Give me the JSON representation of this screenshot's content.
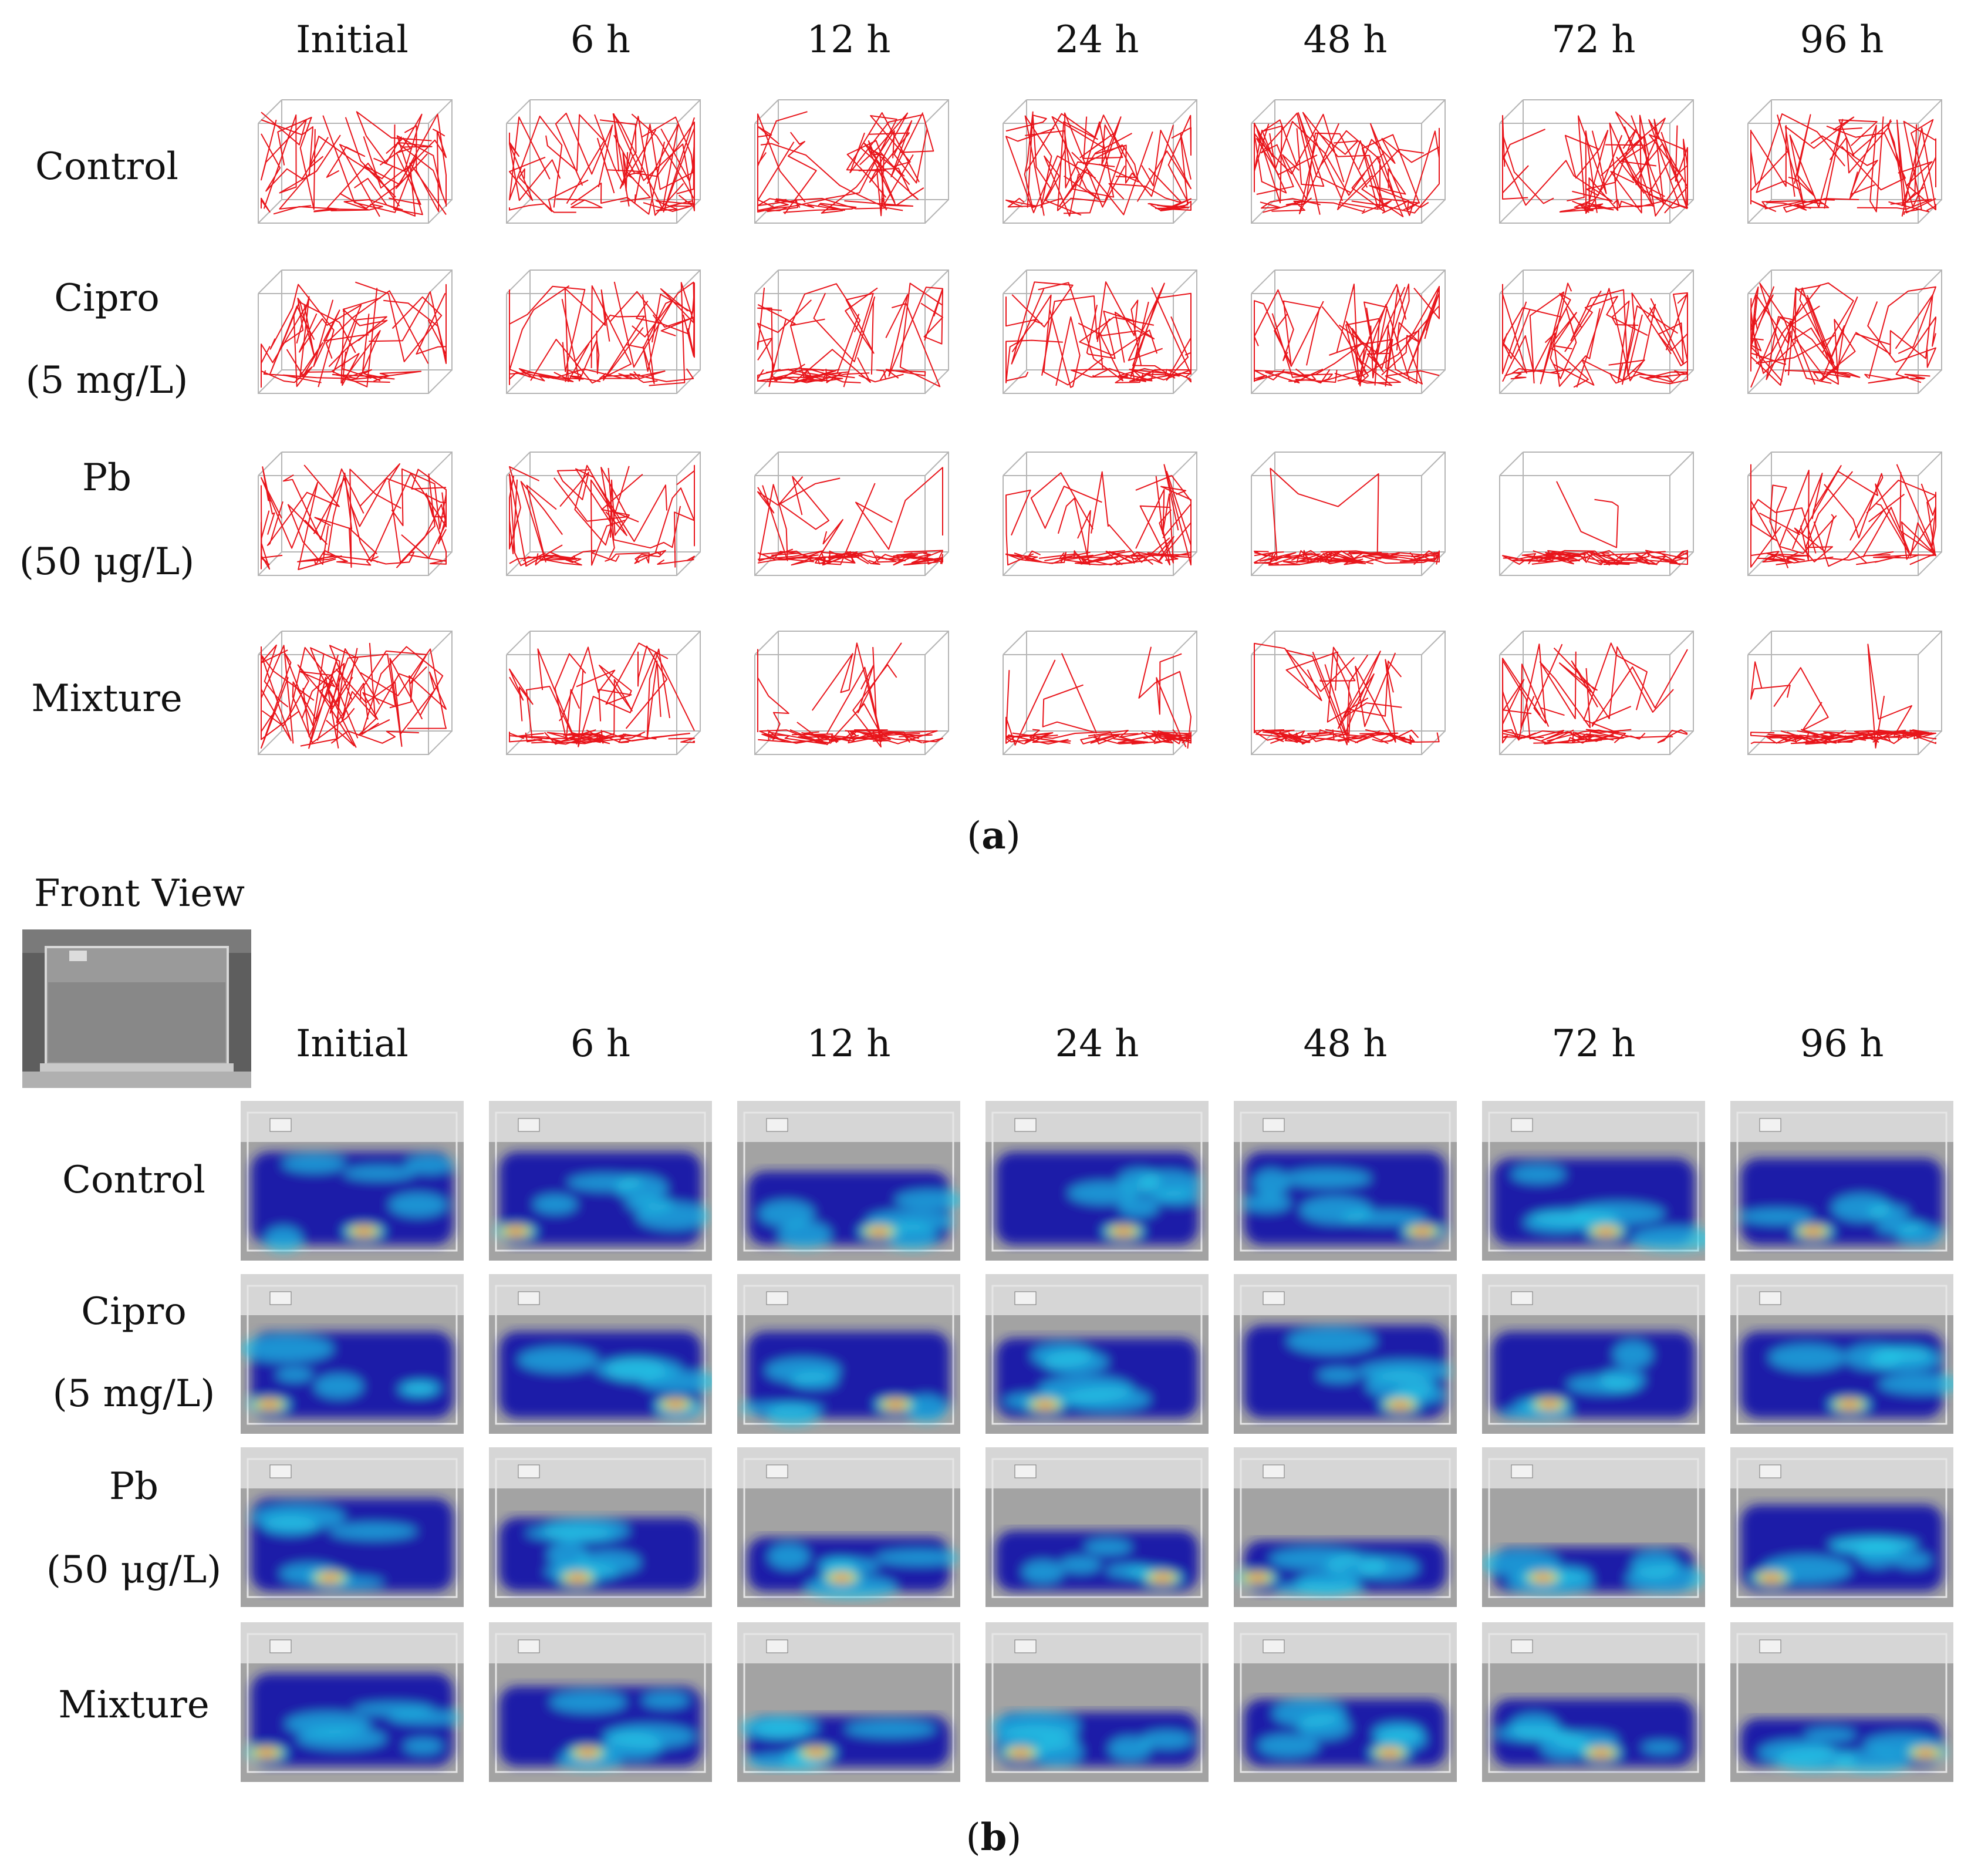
{
  "panel_a": {
    "label_prefix": "(",
    "label_letter": "a",
    "label_suffix": ")",
    "time_points": [
      "Initial",
      "6 h",
      "12 h",
      "24 h",
      "48 h",
      "72 h",
      "96 h"
    ],
    "groups": [
      {
        "name": "Control",
        "conc": ""
      },
      {
        "name": "Cipro",
        "conc": "(5 mg/L)"
      },
      {
        "name": "Pb",
        "conc": "(50 μg/L)"
      },
      {
        "name": "Mixture",
        "conc": ""
      }
    ]
  },
  "panel_b": {
    "label_prefix": "(",
    "label_letter": "b",
    "label_suffix": ")",
    "front_view_label": "Front View",
    "time_points": [
      "Initial",
      "6 h",
      "12 h",
      "24 h",
      "48 h",
      "72 h",
      "96 h"
    ],
    "groups": [
      {
        "name": "Control",
        "conc": ""
      },
      {
        "name": "Cipro",
        "conc": "(5 mg/L)"
      },
      {
        "name": "Pb",
        "conc": "(50 μg/L)"
      },
      {
        "name": "Mixture",
        "conc": ""
      }
    ]
  },
  "colors": {
    "trajectory": "#e8151b",
    "heat_low": "#1a1aa8",
    "heat_mid": "#22c8e6",
    "heat_high": "#e81a10",
    "heat_peak": "#ffe000"
  },
  "icons": {
    "tank_photo": "front-view-tank-photo",
    "trajectory_plot": "3d-trajectory-plot",
    "heatmap": "heatmap-plot"
  }
}
